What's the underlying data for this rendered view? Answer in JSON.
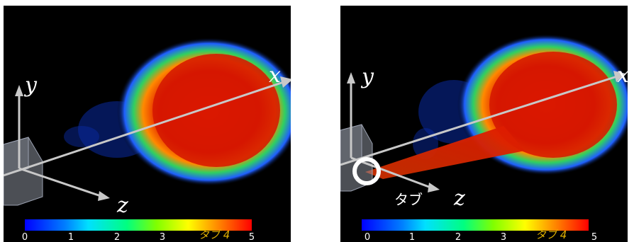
{
  "left_panel": {
    "axes": {
      "x": "x",
      "y": "y",
      "z": "z"
    },
    "colorbar": {
      "ticks": [
        "0",
        "1",
        "2",
        "3",
        "5"
      ],
      "caption": "タブ 4"
    }
  },
  "right_panel": {
    "axes": {
      "x": "x",
      "y": "y",
      "z": "z"
    },
    "tab_label": "タブ",
    "colorbar": {
      "ticks": [
        "0",
        "1",
        "2",
        "3",
        "5"
      ],
      "caption": "タブ 4"
    }
  },
  "colors": {
    "background": "#000000",
    "vortex_core": "#e01a00",
    "vortex_edge": "#1f5fff",
    "axis": "#c8c8c8",
    "marker": "#ffffff"
  }
}
